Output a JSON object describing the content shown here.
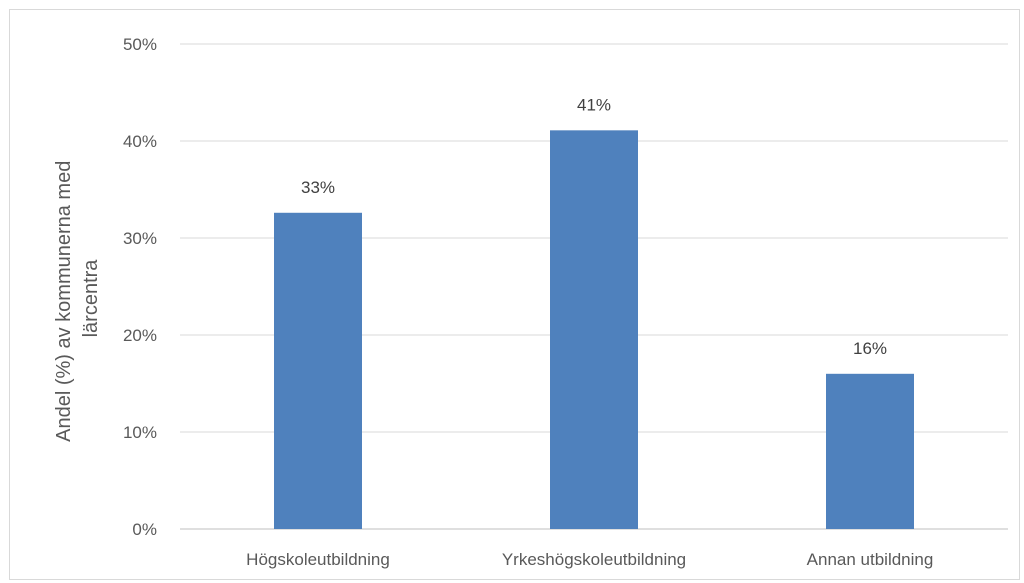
{
  "chart_data": {
    "type": "bar",
    "categories": [
      "Högskoleutbildning",
      "Yrkeshögskoleutbildning",
      "Annan utbildning"
    ],
    "values": [
      32.6,
      41.1,
      16.0
    ],
    "data_labels": [
      "33%",
      "41%",
      "16%"
    ],
    "title": "",
    "xlabel": "",
    "ylabel": [
      "Andel (%) av kommunerna med",
      "lärcentra"
    ],
    "ylim": [
      0,
      50
    ],
    "yticks": [
      0,
      10,
      20,
      30,
      40,
      50
    ],
    "ytick_labels": [
      "0%",
      "10%",
      "20%",
      "30%",
      "40%",
      "50%"
    ],
    "grid": true,
    "legend": "none",
    "colors": {
      "bar": "#4f81bd",
      "grid": "#d9d9d9",
      "axis": "#bfbfbf"
    }
  }
}
